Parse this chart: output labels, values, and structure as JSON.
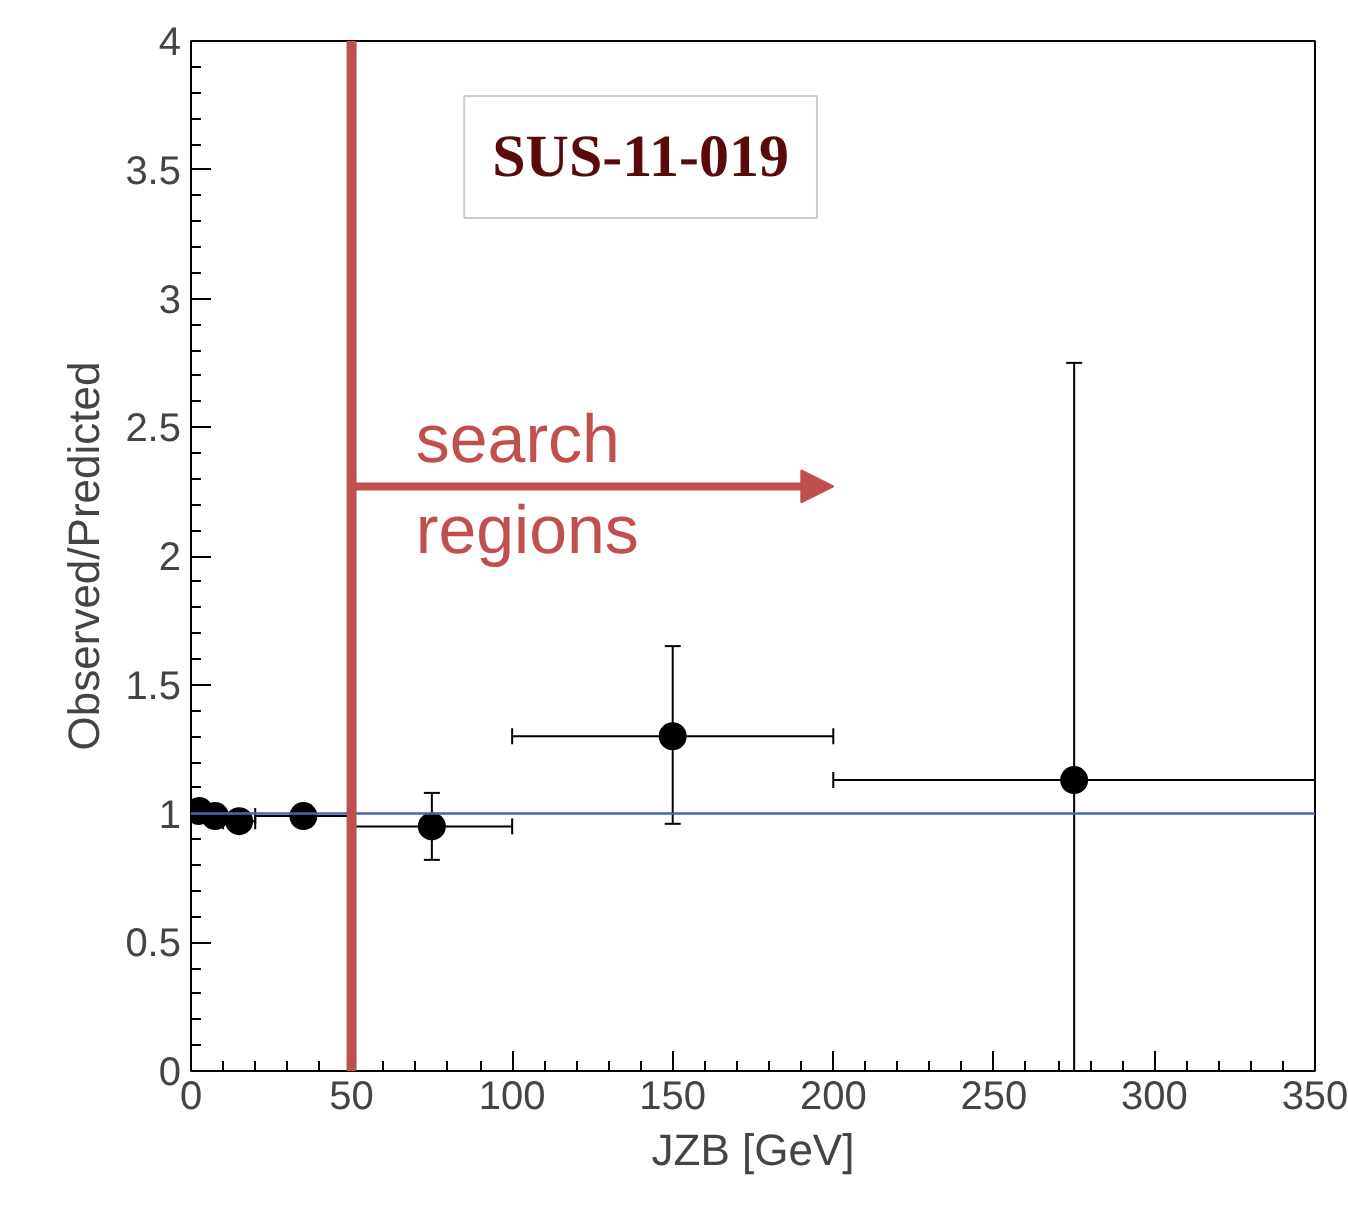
{
  "chart_data": {
    "type": "scatter",
    "xlabel": "JZB [GeV]",
    "ylabel": "Observed/Predicted",
    "x": [
      2.5,
      7.5,
      15,
      35,
      75,
      150,
      275
    ],
    "values": [
      1.01,
      0.99,
      0.97,
      0.99,
      0.95,
      1.3,
      1.13
    ],
    "errors": [
      null,
      null,
      null,
      [
        0.95,
        1.03
      ],
      [
        0.82,
        1.08
      ],
      [
        0.96,
        1.65
      ],
      [
        0,
        2.75
      ]
    ],
    "xerrors": [
      null,
      null,
      [
        10,
        20
      ],
      [
        20,
        50
      ],
      [
        50,
        100
      ],
      [
        100,
        200
      ],
      [
        200,
        350
      ]
    ],
    "color": "#000000",
    "marker": "circle",
    "grid": false,
    "xlim": [
      0,
      350
    ],
    "xticks": [
      0,
      50,
      100,
      150,
      200,
      250,
      300,
      350
    ],
    "ylim": [
      0,
      4
    ],
    "yticks": [
      0,
      0.5,
      1,
      1.5,
      2,
      2.5,
      3,
      3.5,
      4
    ],
    "ref_lines": [
      {
        "axis": "y",
        "value": 1,
        "color": "#4a64b4"
      },
      {
        "axis": "x",
        "value": 50,
        "color": "#c0504d"
      }
    ],
    "annotations": [
      "SUS-11-019",
      "search\nregions"
    ]
  }
}
